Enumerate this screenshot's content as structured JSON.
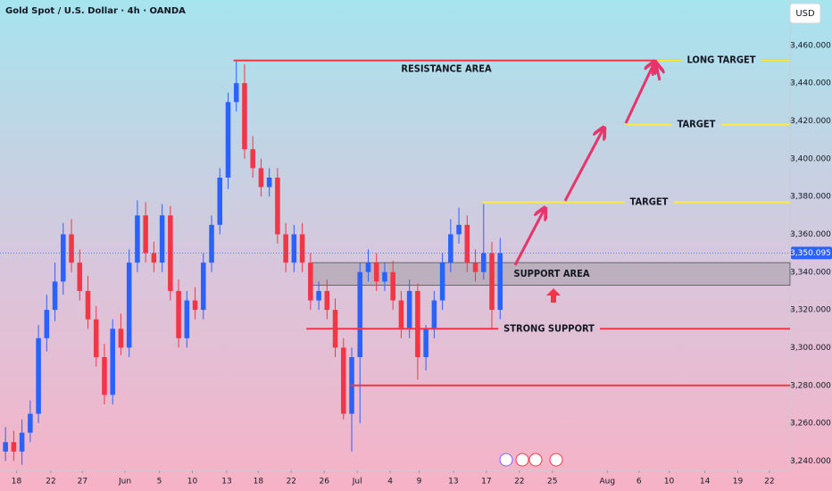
{
  "chart_data": {
    "type": "candlestick",
    "title": "Gold Spot / U.S. Dollar · 4h · OANDA",
    "currency": "USD",
    "x": [
      4,
      10,
      16,
      22,
      28,
      34,
      40,
      46,
      52,
      58,
      64,
      70,
      76,
      82,
      88,
      94,
      100,
      106,
      112,
      118,
      124,
      130,
      136,
      142,
      148,
      154,
      160,
      166,
      172,
      178,
      184,
      190,
      196,
      202,
      208,
      214,
      220,
      226,
      232,
      238,
      244,
      250,
      256,
      262,
      268,
      274,
      280,
      286,
      292,
      298,
      304,
      310,
      316,
      322,
      328,
      334,
      340,
      346,
      352,
      358,
      364
    ],
    "open": [
      3245,
      3250,
      3245,
      3255,
      3265,
      3305,
      3320,
      3335,
      3360,
      3345,
      3330,
      3315,
      3295,
      3275,
      3310,
      3300,
      3345,
      3370,
      3350,
      3345,
      3370,
      3330,
      3305,
      3325,
      3320,
      3345,
      3365,
      3390,
      3430,
      3440,
      3405,
      3395,
      3385,
      3390,
      3360,
      3345,
      3360,
      3345,
      3325,
      3330,
      3320,
      3300,
      3265,
      3295,
      3340,
      3345,
      3335,
      3340,
      3325,
      3310,
      3330,
      3295,
      3310,
      3325,
      3345,
      3360,
      3365,
      3345,
      3340,
      3350,
      3320
    ],
    "high": [
      3258,
      3256,
      3262,
      3272,
      3312,
      3328,
      3345,
      3366,
      3368,
      3352,
      3338,
      3322,
      3302,
      3315,
      3318,
      3352,
      3378,
      3377,
      3356,
      3376,
      3375,
      3336,
      3330,
      3332,
      3350,
      3370,
      3395,
      3435,
      3452,
      3450,
      3412,
      3400,
      3395,
      3395,
      3366,
      3365,
      3366,
      3350,
      3335,
      3336,
      3326,
      3305,
      3300,
      3345,
      3352,
      3350,
      3345,
      3346,
      3330,
      3336,
      3334,
      3312,
      3330,
      3350,
      3368,
      3374,
      3370,
      3352,
      3376,
      3356,
      3358
    ],
    "low": [
      3240,
      3240,
      3238,
      3250,
      3260,
      3298,
      3314,
      3328,
      3340,
      3325,
      3310,
      3290,
      3270,
      3270,
      3296,
      3295,
      3340,
      3345,
      3340,
      3340,
      3325,
      3300,
      3300,
      3315,
      3315,
      3340,
      3360,
      3384,
      3425,
      3400,
      3390,
      3380,
      3380,
      3355,
      3340,
      3340,
      3340,
      3320,
      3320,
      3315,
      3295,
      3262,
      3245,
      3260,
      3335,
      3330,
      3330,
      3320,
      3305,
      3305,
      3283,
      3288,
      3305,
      3320,
      3340,
      3355,
      3340,
      3335,
      3336,
      3310,
      3315
    ],
    "close": [
      3250,
      3245,
      3255,
      3265,
      3305,
      3320,
      3335,
      3360,
      3345,
      3330,
      3315,
      3295,
      3275,
      3310,
      3300,
      3345,
      3370,
      3350,
      3345,
      3370,
      3330,
      3305,
      3325,
      3320,
      3345,
      3365,
      3390,
      3430,
      3440,
      3405,
      3395,
      3385,
      3390,
      3360,
      3345,
      3360,
      3345,
      3325,
      3330,
      3320,
      3300,
      3265,
      3295,
      3340,
      3345,
      3335,
      3340,
      3325,
      3310,
      3330,
      3295,
      3310,
      3325,
      3345,
      3360,
      3365,
      3345,
      3340,
      3350,
      3320,
      3350
    ],
    "up_color": "#2962ff",
    "down_color": "#f23645",
    "xlim": [
      0,
      575
    ],
    "xticks": [
      {
        "value": 12,
        "label": "18"
      },
      {
        "value": 37,
        "label": "22"
      },
      {
        "value": 60,
        "label": "27"
      },
      {
        "value": 91,
        "label": "Jun"
      },
      {
        "value": 116,
        "label": "5"
      },
      {
        "value": 140,
        "label": "10"
      },
      {
        "value": 165,
        "label": "13"
      },
      {
        "value": 188,
        "label": "18"
      },
      {
        "value": 212,
        "label": "22"
      },
      {
        "value": 236,
        "label": "26"
      },
      {
        "value": 260,
        "label": "Jul"
      },
      {
        "value": 284,
        "label": "4"
      },
      {
        "value": 305,
        "label": "9"
      },
      {
        "value": 330,
        "label": "13"
      },
      {
        "value": 354,
        "label": "17"
      },
      {
        "value": 378,
        "label": "22"
      },
      {
        "value": 402,
        "label": "25"
      },
      {
        "value": 442,
        "label": "Aug"
      },
      {
        "value": 465,
        "label": "6"
      },
      {
        "value": 487,
        "label": "10"
      },
      {
        "value": 513,
        "label": "14"
      },
      {
        "value": 537,
        "label": "19"
      },
      {
        "value": 560,
        "label": "22"
      }
    ],
    "ylim": [
      3235,
      3484
    ],
    "yticks": [
      {
        "value": 3240,
        "label": "3,240.000"
      },
      {
        "value": 3260,
        "label": "3,260.000"
      },
      {
        "value": 3280,
        "label": "3,280.000"
      },
      {
        "value": 3300,
        "label": "3,300.000"
      },
      {
        "value": 3320,
        "label": "3,320.000"
      },
      {
        "value": 3340,
        "label": "3,340.000"
      },
      {
        "value": 3360,
        "label": "3,360.000"
      },
      {
        "value": 3380,
        "label": "3,380.000"
      },
      {
        "value": 3400,
        "label": "3,400.000"
      },
      {
        "value": 3420,
        "label": "3,420.000"
      },
      {
        "value": 3440,
        "label": "3,440.000"
      },
      {
        "value": 3460,
        "label": "3,460.000"
      }
    ],
    "grid": false,
    "last_price": {
      "value": 3350.095,
      "label": "3,350.095"
    },
    "levels": [
      {
        "label": "RESISTANCE AREA",
        "value": 3452,
        "from": 170,
        "color": "#f23645"
      },
      {
        "label": "LONG TARGET",
        "value": 3452,
        "from": 478,
        "color": "#ffeb3b"
      },
      {
        "label": "TARGET",
        "value": 3418,
        "from": 455,
        "color": "#ffeb3b"
      },
      {
        "label": "TARGET",
        "value": 3377,
        "from": 351,
        "color": "#ffeb3b"
      },
      {
        "label": "STRONG SUPPORT",
        "value": 3310,
        "from": 223,
        "color": "#f23645"
      },
      {
        "value": 3280,
        "from": 255,
        "color": "#f23645"
      }
    ],
    "zones": [
      {
        "label": "SUPPORT AREA",
        "low": 3333,
        "high": 3345,
        "from": 227,
        "color": "#888888"
      }
    ]
  }
}
